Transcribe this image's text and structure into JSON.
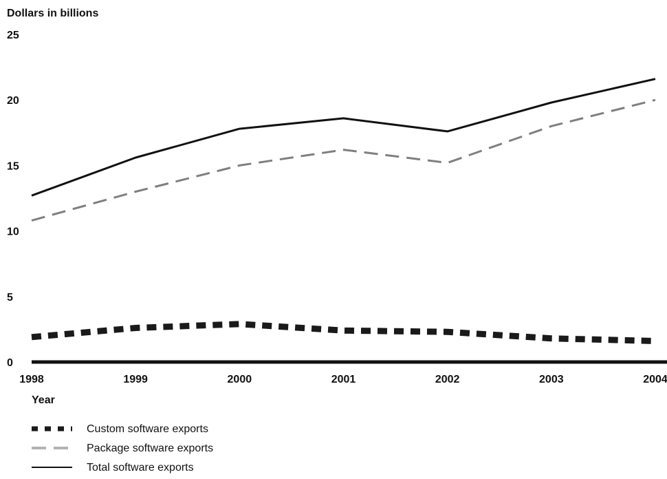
{
  "chart_data": {
    "type": "line",
    "ylabel": "Dollars in billions",
    "xlabel": "Year",
    "x": [
      "1998",
      "1999",
      "2000",
      "2001",
      "2002",
      "2003",
      "2004"
    ],
    "ylim": [
      0,
      25
    ],
    "yticks": [
      "0",
      "5",
      "10",
      "15",
      "20",
      "25"
    ],
    "grid": false,
    "legend_position": "bottom-left",
    "series": [
      {
        "name": "Custom software exports",
        "values": [
          1.9,
          2.6,
          2.9,
          2.4,
          2.3,
          1.8,
          1.6
        ],
        "color": "#1a1a1a",
        "style": "thick-dotted"
      },
      {
        "name": "Package software exports",
        "values": [
          10.8,
          13.0,
          15.0,
          16.2,
          15.2,
          18.0,
          20.0
        ],
        "color": "#7f7f7f",
        "style": "dashed"
      },
      {
        "name": "Total software exports",
        "values": [
          12.7,
          15.6,
          17.8,
          18.6,
          17.6,
          19.8,
          21.6
        ],
        "color": "#111111",
        "style": "solid"
      }
    ]
  }
}
